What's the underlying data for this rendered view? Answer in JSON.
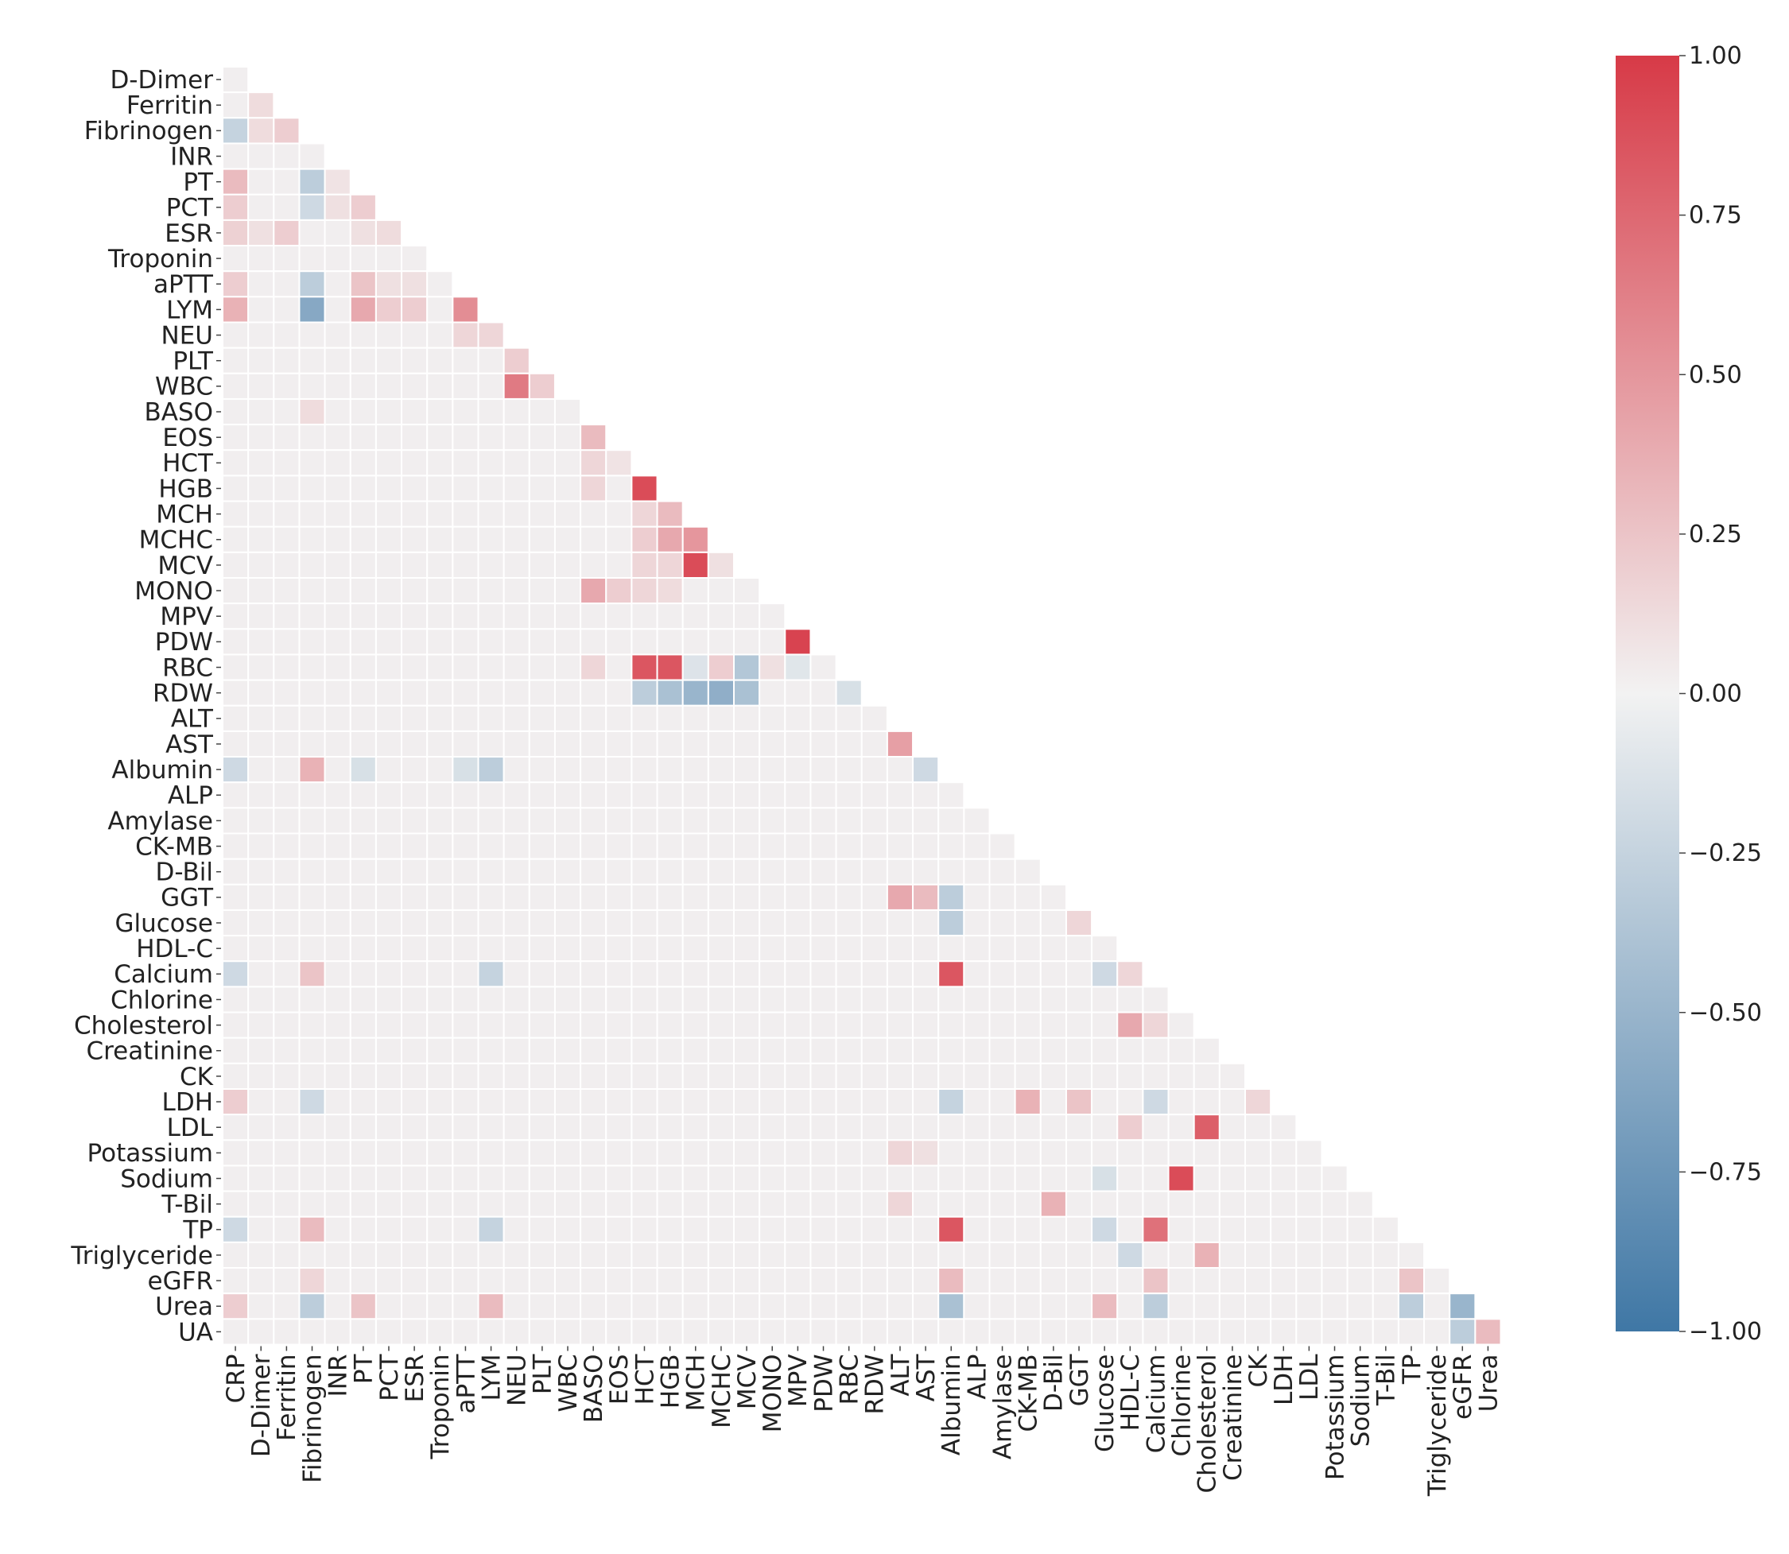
{
  "chart_data": {
    "type": "heatmap",
    "title": "",
    "xlabel": "",
    "ylabel": "",
    "variables": [
      "CRP",
      "D-Dimer",
      "Ferritin",
      "Fibrinogen",
      "INR",
      "PT",
      "PCT",
      "ESR",
      "Troponin",
      "aPTT",
      "LYM",
      "NEU",
      "PLT",
      "WBC",
      "BASO",
      "EOS",
      "HCT",
      "HGB",
      "MCH",
      "MCHC",
      "MCV",
      "MONO",
      "MPV",
      "PDW",
      "RBC",
      "RDW",
      "ALT",
      "AST",
      "Albumin",
      "ALP",
      "Amylase",
      "CK-MB",
      "D-Bil",
      "GGT",
      "Glucose",
      "HDL-C",
      "Calcium",
      "Chlorine",
      "Cholesterol",
      "Creatinine",
      "CK",
      "LDH",
      "LDL",
      "Potassium",
      "Sodium",
      "T-Bil",
      "TP",
      "Triglyceride",
      "eGFR",
      "Urea",
      "UA"
    ],
    "row_labels": [
      "D-Dimer",
      "Ferritin",
      "Fibrinogen",
      "INR",
      "PT",
      "PCT",
      "ESR",
      "Troponin",
      "aPTT",
      "LYM",
      "NEU",
      "PLT",
      "WBC",
      "BASO",
      "EOS",
      "HCT",
      "HGB",
      "MCH",
      "MCHC",
      "MCV",
      "MONO",
      "MPV",
      "PDW",
      "RBC",
      "RDW",
      "ALT",
      "AST",
      "Albumin",
      "ALP",
      "Amylase",
      "CK-MB",
      "D-Bil",
      "GGT",
      "Glucose",
      "HDL-C",
      "Calcium",
      "Chlorine",
      "Cholesterol",
      "Creatinine",
      "CK",
      "LDH",
      "LDL",
      "Potassium",
      "Sodium",
      "T-Bil",
      "TP",
      "Triglyceride",
      "eGFR",
      "Urea",
      "UA"
    ],
    "col_labels": [
      "CRP",
      "D-Dimer",
      "Ferritin",
      "Fibrinogen",
      "INR",
      "PT",
      "PCT",
      "ESR",
      "Troponin",
      "aPTT",
      "LYM",
      "NEU",
      "PLT",
      "WBC",
      "BASO",
      "EOS",
      "HCT",
      "HGB",
      "MCH",
      "MCHC",
      "MCV",
      "MONO",
      "MPV",
      "PDW",
      "RBC",
      "RDW",
      "ALT",
      "AST",
      "Albumin",
      "ALP",
      "Amylase",
      "CK-MB",
      "D-Bil",
      "GGT",
      "Glucose",
      "HDL-C",
      "Calcium",
      "Chlorine",
      "Cholesterol",
      "Creatinine",
      "CK",
      "LDH",
      "LDL",
      "Potassium",
      "Sodium",
      "T-Bil",
      "TP",
      "Triglyceride",
      "eGFR",
      "Urea"
    ],
    "mask": "lower triangle only (upper triangle and diagonal hidden)",
    "correlations": [
      {
        "row": "Ferritin",
        "col": "D-Dimer",
        "value": 0.12
      },
      {
        "row": "Fibrinogen",
        "col": "CRP",
        "value": -0.25
      },
      {
        "row": "Fibrinogen",
        "col": "D-Dimer",
        "value": 0.12
      },
      {
        "row": "Fibrinogen",
        "col": "Ferritin",
        "value": 0.2
      },
      {
        "row": "PT",
        "col": "CRP",
        "value": 0.3
      },
      {
        "row": "PT",
        "col": "Fibrinogen",
        "value": -0.3
      },
      {
        "row": "PT",
        "col": "INR",
        "value": 0.08
      },
      {
        "row": "PCT",
        "col": "CRP",
        "value": 0.2
      },
      {
        "row": "PCT",
        "col": "Fibrinogen",
        "value": -0.2
      },
      {
        "row": "PCT",
        "col": "INR",
        "value": 0.1
      },
      {
        "row": "PCT",
        "col": "PT",
        "value": 0.2
      },
      {
        "row": "ESR",
        "col": "CRP",
        "value": 0.18
      },
      {
        "row": "ESR",
        "col": "D-Dimer",
        "value": 0.1
      },
      {
        "row": "ESR",
        "col": "Ferritin",
        "value": 0.2
      },
      {
        "row": "ESR",
        "col": "PT",
        "value": 0.1
      },
      {
        "row": "ESR",
        "col": "PCT",
        "value": 0.12
      },
      {
        "row": "aPTT",
        "col": "CRP",
        "value": 0.2
      },
      {
        "row": "aPTT",
        "col": "Fibrinogen",
        "value": -0.3
      },
      {
        "row": "aPTT",
        "col": "PT",
        "value": 0.25
      },
      {
        "row": "aPTT",
        "col": "PCT",
        "value": 0.1
      },
      {
        "row": "aPTT",
        "col": "ESR",
        "value": 0.1
      },
      {
        "row": "LYM",
        "col": "CRP",
        "value": 0.35
      },
      {
        "row": "LYM",
        "col": "Fibrinogen",
        "value": -0.6
      },
      {
        "row": "LYM",
        "col": "PT",
        "value": 0.4
      },
      {
        "row": "LYM",
        "col": "PCT",
        "value": 0.2
      },
      {
        "row": "LYM",
        "col": "ESR",
        "value": 0.2
      },
      {
        "row": "LYM",
        "col": "aPTT",
        "value": 0.55
      },
      {
        "row": "NEU",
        "col": "aPTT",
        "value": 0.15
      },
      {
        "row": "NEU",
        "col": "LYM",
        "value": 0.15
      },
      {
        "row": "PLT",
        "col": "NEU",
        "value": 0.2
      },
      {
        "row": "WBC",
        "col": "NEU",
        "value": 0.65
      },
      {
        "row": "WBC",
        "col": "PLT",
        "value": 0.2
      },
      {
        "row": "BASO",
        "col": "Fibrinogen",
        "value": 0.12
      },
      {
        "row": "EOS",
        "col": "BASO",
        "value": 0.3
      },
      {
        "row": "HCT",
        "col": "BASO",
        "value": 0.15
      },
      {
        "row": "HCT",
        "col": "EOS",
        "value": 0.08
      },
      {
        "row": "HGB",
        "col": "BASO",
        "value": 0.15
      },
      {
        "row": "HGB",
        "col": "HCT",
        "value": 0.9
      },
      {
        "row": "MCH",
        "col": "HCT",
        "value": 0.15
      },
      {
        "row": "MCH",
        "col": "HGB",
        "value": 0.3
      },
      {
        "row": "MCHC",
        "col": "HCT",
        "value": 0.2
      },
      {
        "row": "MCHC",
        "col": "HGB",
        "value": 0.4
      },
      {
        "row": "MCHC",
        "col": "MCH",
        "value": 0.5
      },
      {
        "row": "MCV",
        "col": "HCT",
        "value": 0.15
      },
      {
        "row": "MCV",
        "col": "HGB",
        "value": 0.15
      },
      {
        "row": "MCV",
        "col": "MCH",
        "value": 0.9
      },
      {
        "row": "MCV",
        "col": "MCHC",
        "value": 0.1
      },
      {
        "row": "MONO",
        "col": "BASO",
        "value": 0.4
      },
      {
        "row": "MONO",
        "col": "EOS",
        "value": 0.2
      },
      {
        "row": "MONO",
        "col": "HCT",
        "value": 0.15
      },
      {
        "row": "MONO",
        "col": "HGB",
        "value": 0.12
      },
      {
        "row": "PDW",
        "col": "MPV",
        "value": 0.95
      },
      {
        "row": "RBC",
        "col": "BASO",
        "value": 0.15
      },
      {
        "row": "RBC",
        "col": "HCT",
        "value": 0.85
      },
      {
        "row": "RBC",
        "col": "HGB",
        "value": 0.85
      },
      {
        "row": "RBC",
        "col": "MCH",
        "value": -0.12
      },
      {
        "row": "RBC",
        "col": "MCHC",
        "value": 0.2
      },
      {
        "row": "RBC",
        "col": "MCV",
        "value": -0.35
      },
      {
        "row": "RBC",
        "col": "MONO",
        "value": 0.1
      },
      {
        "row": "RBC",
        "col": "MPV",
        "value": -0.1
      },
      {
        "row": "RDW",
        "col": "HCT",
        "value": -0.3
      },
      {
        "row": "RDW",
        "col": "HGB",
        "value": -0.4
      },
      {
        "row": "RDW",
        "col": "MCH",
        "value": -0.5
      },
      {
        "row": "RDW",
        "col": "MCHC",
        "value": -0.55
      },
      {
        "row": "RDW",
        "col": "MCV",
        "value": -0.4
      },
      {
        "row": "RDW",
        "col": "RBC",
        "value": -0.15
      },
      {
        "row": "AST",
        "col": "ALT",
        "value": 0.45
      },
      {
        "row": "Albumin",
        "col": "CRP",
        "value": -0.2
      },
      {
        "row": "Albumin",
        "col": "Fibrinogen",
        "value": 0.35
      },
      {
        "row": "Albumin",
        "col": "PT",
        "value": -0.15
      },
      {
        "row": "Albumin",
        "col": "aPTT",
        "value": -0.15
      },
      {
        "row": "Albumin",
        "col": "LYM",
        "value": -0.3
      },
      {
        "row": "Albumin",
        "col": "AST",
        "value": -0.2
      },
      {
        "row": "GGT",
        "col": "ALT",
        "value": 0.4
      },
      {
        "row": "GGT",
        "col": "AST",
        "value": 0.3
      },
      {
        "row": "GGT",
        "col": "Albumin",
        "value": -0.3
      },
      {
        "row": "Glucose",
        "col": "Albumin",
        "value": -0.3
      },
      {
        "row": "Glucose",
        "col": "GGT",
        "value": 0.15
      },
      {
        "row": "Calcium",
        "col": "CRP",
        "value": -0.2
      },
      {
        "row": "Calcium",
        "col": "Fibrinogen",
        "value": 0.25
      },
      {
        "row": "Calcium",
        "col": "LYM",
        "value": -0.25
      },
      {
        "row": "Calcium",
        "col": "Albumin",
        "value": 0.85
      },
      {
        "row": "Calcium",
        "col": "Glucose",
        "value": -0.2
      },
      {
        "row": "Calcium",
        "col": "HDL-C",
        "value": 0.15
      },
      {
        "row": "Cholesterol",
        "col": "HDL-C",
        "value": 0.4
      },
      {
        "row": "Cholesterol",
        "col": "Calcium",
        "value": 0.15
      },
      {
        "row": "LDH",
        "col": "CRP",
        "value": 0.2
      },
      {
        "row": "LDH",
        "col": "Fibrinogen",
        "value": -0.2
      },
      {
        "row": "LDH",
        "col": "Albumin",
        "value": -0.25
      },
      {
        "row": "LDH",
        "col": "CK-MB",
        "value": 0.35
      },
      {
        "row": "LDH",
        "col": "GGT",
        "value": 0.25
      },
      {
        "row": "LDH",
        "col": "Calcium",
        "value": -0.2
      },
      {
        "row": "LDH",
        "col": "CK",
        "value": 0.15
      },
      {
        "row": "LDL",
        "col": "HDL-C",
        "value": 0.2
      },
      {
        "row": "LDL",
        "col": "Cholesterol",
        "value": 0.8
      },
      {
        "row": "Potassium",
        "col": "ALT",
        "value": 0.15
      },
      {
        "row": "Potassium",
        "col": "AST",
        "value": 0.1
      },
      {
        "row": "Sodium",
        "col": "Chlorine",
        "value": 0.9
      },
      {
        "row": "Sodium",
        "col": "Glucose",
        "value": -0.15
      },
      {
        "row": "T-Bil",
        "col": "D-Bil",
        "value": 0.35
      },
      {
        "row": "T-Bil",
        "col": "ALT",
        "value": 0.15
      },
      {
        "row": "TP",
        "col": "CRP",
        "value": -0.2
      },
      {
        "row": "TP",
        "col": "Fibrinogen",
        "value": 0.3
      },
      {
        "row": "TP",
        "col": "LYM",
        "value": -0.25
      },
      {
        "row": "TP",
        "col": "Albumin",
        "value": 0.85
      },
      {
        "row": "TP",
        "col": "Calcium",
        "value": 0.7
      },
      {
        "row": "TP",
        "col": "Glucose",
        "value": -0.2
      },
      {
        "row": "Triglyceride",
        "col": "HDL-C",
        "value": -0.2
      },
      {
        "row": "Triglyceride",
        "col": "Cholesterol",
        "value": 0.35
      },
      {
        "row": "eGFR",
        "col": "Fibrinogen",
        "value": 0.15
      },
      {
        "row": "eGFR",
        "col": "Albumin",
        "value": 0.3
      },
      {
        "row": "eGFR",
        "col": "Calcium",
        "value": 0.25
      },
      {
        "row": "eGFR",
        "col": "TP",
        "value": 0.25
      },
      {
        "row": "Urea",
        "col": "CRP",
        "value": 0.2
      },
      {
        "row": "Urea",
        "col": "Fibrinogen",
        "value": -0.3
      },
      {
        "row": "Urea",
        "col": "PT",
        "value": 0.25
      },
      {
        "row": "Urea",
        "col": "LYM",
        "value": 0.3
      },
      {
        "row": "Urea",
        "col": "Albumin",
        "value": -0.4
      },
      {
        "row": "Urea",
        "col": "Glucose",
        "value": 0.3
      },
      {
        "row": "Urea",
        "col": "Calcium",
        "value": -0.3
      },
      {
        "row": "Urea",
        "col": "TP",
        "value": -0.3
      },
      {
        "row": "Urea",
        "col": "eGFR",
        "value": -0.5
      },
      {
        "row": "UA",
        "col": "eGFR",
        "value": -0.3
      },
      {
        "row": "UA",
        "col": "Urea",
        "value": 0.3
      }
    ],
    "default_value": 0.02,
    "colorbar": {
      "vmin": -1.0,
      "vmax": 1.0,
      "ticks": [
        1.0,
        0.75,
        0.5,
        0.25,
        0.0,
        -0.25,
        -0.5,
        -0.75,
        -1.0
      ],
      "tick_labels": [
        "1.00",
        "0.75",
        "0.50",
        "0.25",
        "0.00",
        "−0.25",
        "−0.50",
        "−0.75",
        "−1.00"
      ],
      "position": "right",
      "high_color": "#d73a47",
      "mid_color": "#f2f2f2",
      "low_color": "#3f77a5"
    }
  }
}
